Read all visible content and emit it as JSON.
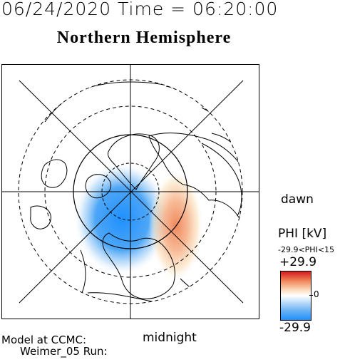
{
  "header": {
    "timestamp": "06/24/2020 Time = 06:20:00"
  },
  "title": "Northern Hemisphere",
  "labels": {
    "dawn": "dawn",
    "midnight": "midnight"
  },
  "model": {
    "line1": "Model at CCMC:",
    "line2": "Weimer_05 Run:"
  },
  "legend": {
    "title": "PHI [kV]",
    "range": "-29.9<PHI<15",
    "max": "+29.9",
    "zero": "0",
    "min": "-29.9",
    "colors": {
      "max": "#d7191c",
      "mid": "#ffffff",
      "min": "#1e90ff"
    }
  },
  "map": {
    "projection": "polar stereographic",
    "hemisphere": "north",
    "cells": [
      {
        "name": "dusk-cell-negative",
        "color": "#1e90ff"
      },
      {
        "name": "dawn-cell-positive",
        "color": "#d7191c"
      }
    ]
  }
}
